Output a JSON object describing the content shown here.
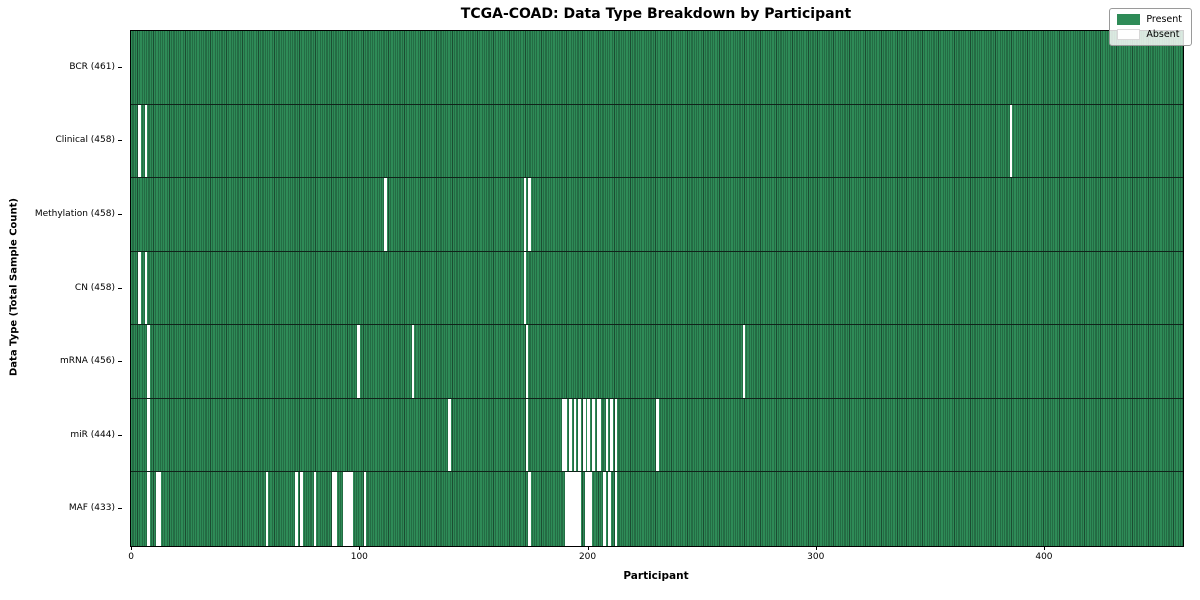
{
  "title": "TCGA-COAD: Data Type Breakdown by Participant",
  "xlabel": "Participant",
  "ylabel": "Data Type (Total Sample Count)",
  "legend": {
    "present_label": "Present",
    "absent_label": "Absent"
  },
  "colors": {
    "present": "#2e8b57",
    "present_edge": "#1b4d32",
    "absent": "#ffffff",
    "plot_border": "#000000"
  },
  "chart_data": {
    "type": "heatmap",
    "title": "TCGA-COAD: Data Type Breakdown by Participant",
    "xlabel": "Participant",
    "ylabel": "Data Type (Total Sample Count)",
    "legend_entries": [
      "Present",
      "Absent"
    ],
    "legend_position": "upper right",
    "n_participants": 461,
    "x_ticks": [
      0,
      100,
      200,
      300,
      400
    ],
    "xlim": [
      -0.5,
      460.5
    ],
    "grid": false,
    "rows": [
      {
        "label": "BCR (461)",
        "data_type": "BCR",
        "present_count": 461,
        "absent_participants": []
      },
      {
        "label": "Clinical (458)",
        "data_type": "Clinical",
        "present_count": 458,
        "absent_participants": [
          3,
          6,
          385
        ]
      },
      {
        "label": "Methylation (458)",
        "data_type": "Methylation",
        "present_count": 458,
        "absent_participants": [
          111,
          172,
          174
        ]
      },
      {
        "label": "CN (458)",
        "data_type": "CN",
        "present_count": 458,
        "absent_participants": [
          3,
          6,
          172
        ]
      },
      {
        "label": "mRNA (456)",
        "data_type": "mRNA",
        "present_count": 456,
        "absent_participants": [
          7,
          99,
          123,
          173,
          268
        ]
      },
      {
        "label": "miR (444)",
        "data_type": "miR",
        "present_count": 444,
        "absent_participants": [
          7,
          139,
          173,
          189,
          190,
          192,
          194,
          196,
          198,
          200,
          202,
          204,
          205,
          208,
          210,
          212,
          230
        ]
      },
      {
        "label": "MAF (433)",
        "data_type": "MAF",
        "present_count": 433,
        "absent_participants": [
          7,
          11,
          12,
          59,
          72,
          74,
          80,
          88,
          89,
          93,
          94,
          95,
          96,
          102,
          174,
          190,
          191,
          192,
          193,
          194,
          195,
          196,
          199,
          200,
          201,
          207,
          209,
          212
        ]
      }
    ]
  }
}
